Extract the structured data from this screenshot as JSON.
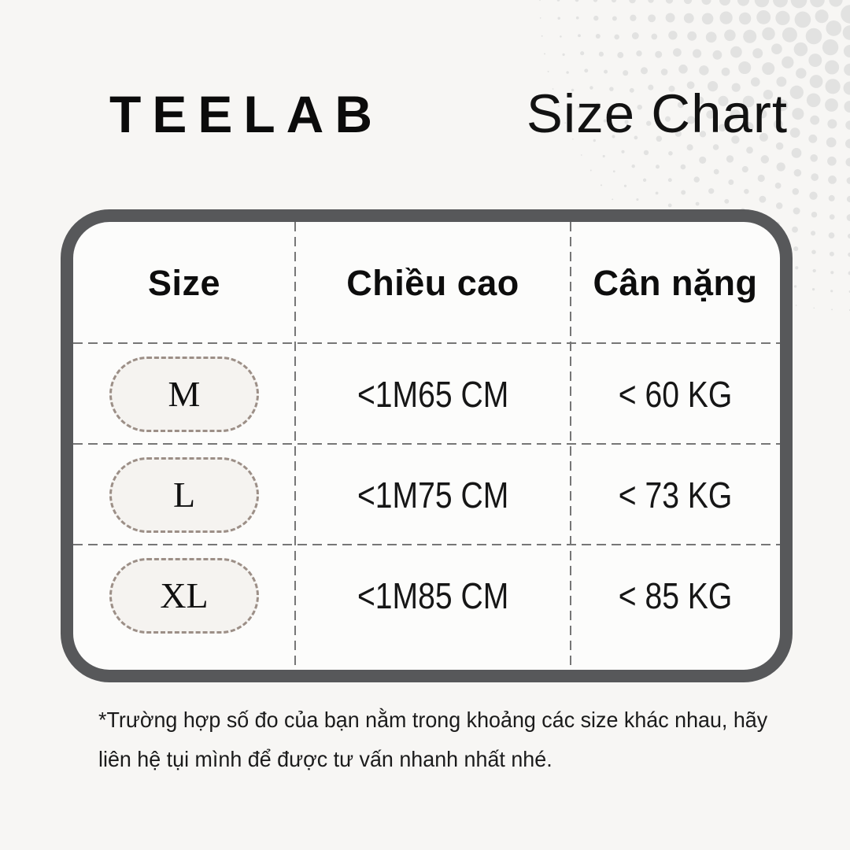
{
  "brand": {
    "logo": "TEELAB",
    "title": "Size Chart"
  },
  "table": {
    "columns": [
      "Size",
      "Chiều cao",
      "Cân nặng"
    ],
    "rows": [
      {
        "size": "M",
        "height": "<1M65 CM",
        "weight": "< 60 KG"
      },
      {
        "size": "L",
        "height": "<1M75 CM",
        "weight": "< 73 KG"
      },
      {
        "size": "XL",
        "height": "<1M85 CM",
        "weight": "< 85 KG"
      }
    ]
  },
  "note_lines": [
    "*Trường hợp số đo của bạn nằm trong khoảng các size khác nhau, hãy",
    "liên hệ tụi mình để được tư vấn nhanh nhất nhé."
  ],
  "colors": {
    "background": "#f7f6f4",
    "panel": "#fcfcfb",
    "table_border": "#57585a",
    "divider": "#767676",
    "pill_border": "#9c8f87",
    "pill_fill": "#f5f3f0",
    "halftone_dot": "#e2e2e1",
    "text": "#141414"
  }
}
